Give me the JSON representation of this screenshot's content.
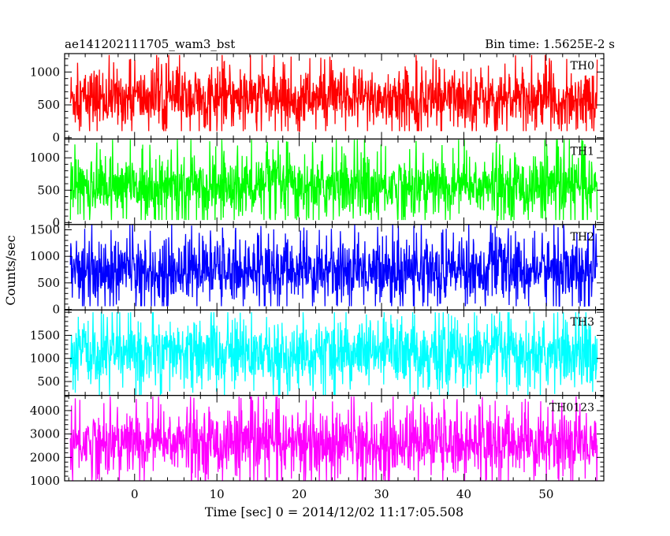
{
  "chart_data": {
    "type": "line",
    "title_left": "ae141202111705_wam3_bst",
    "title_right": "Bin time: 1.5625E-2 s",
    "xlabel": "Time [sec] 0 = 2014/12/02 11:17:05.508",
    "ylabel": "Counts/sec",
    "xlim": [
      -8.5,
      57.0
    ],
    "data_range": [
      -7.8,
      56.2
    ],
    "x_ticks": [
      0,
      10,
      20,
      30,
      40,
      50
    ],
    "grid": false,
    "panels": [
      {
        "name": "TH0",
        "color": "#ff0000",
        "ylim": [
          -20,
          1280
        ],
        "y_ticks": [
          0,
          500,
          1000
        ],
        "baseline": 600,
        "low": 100,
        "high": 1260
      },
      {
        "name": "TH1",
        "color": "#00ff00",
        "ylim": [
          -30,
          1290
        ],
        "y_ticks": [
          0,
          500,
          1000
        ],
        "baseline": 560,
        "low": 40,
        "high": 1280
      },
      {
        "name": "TH2",
        "color": "#0000ff",
        "ylim": [
          -10,
          1600
        ],
        "y_ticks": [
          0,
          500,
          1000,
          1500
        ],
        "baseline": 750,
        "low": 60,
        "high": 1600
      },
      {
        "name": "TH3",
        "color": "#00ffff",
        "ylim": [
          200,
          2050
        ],
        "y_ticks": [
          500,
          1000,
          1500
        ],
        "baseline": 1100,
        "low": 200,
        "high": 2000
      },
      {
        "name": "TH0123",
        "color": "#ff00ff",
        "ylim": [
          1000,
          4650
        ],
        "y_ticks": [
          1000,
          2000,
          3000,
          4000
        ],
        "baseline": 2650,
        "low": 1000,
        "high": 4600
      }
    ]
  }
}
